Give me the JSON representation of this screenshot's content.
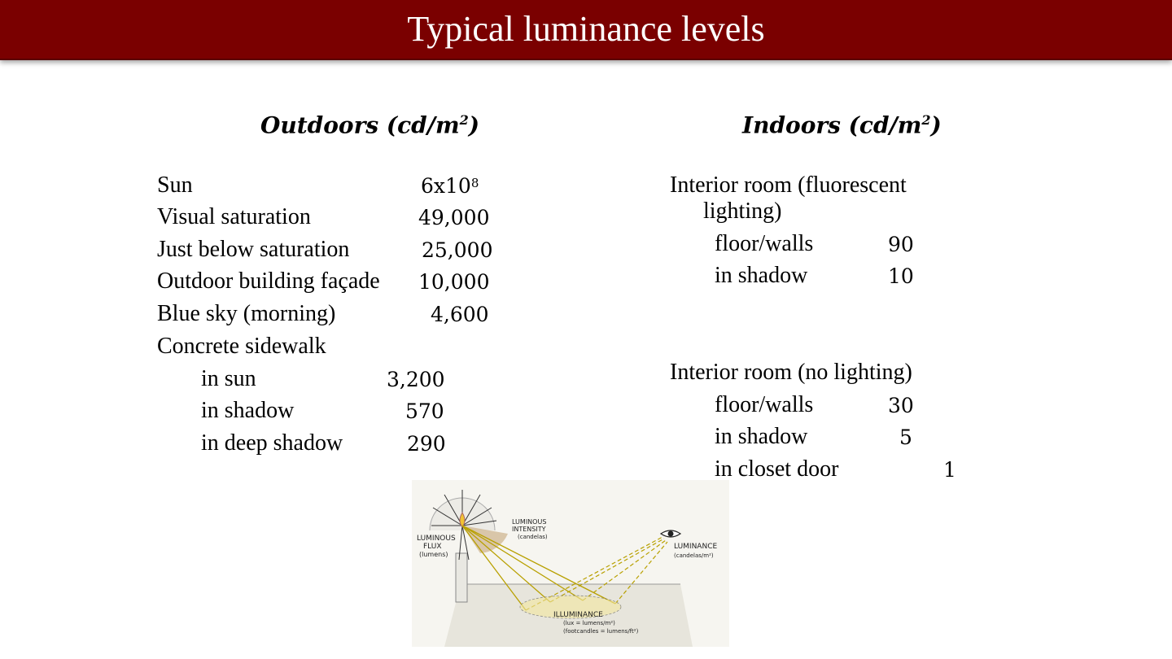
{
  "slide": {
    "title": "Typical luminance levels"
  },
  "outdoors": {
    "heading": "Outdoors (cd/m",
    "heading_sup": "2",
    "heading_close": ")",
    "sun_label": "Sun",
    "sun_base": "6x10",
    "sun_exp": "8",
    "rows": [
      {
        "label": "Visual saturation",
        "value": "49,000"
      },
      {
        "label": "Just below saturation",
        "value": "25,000"
      },
      {
        "label": "Outdoor building façade",
        "value": "10,000"
      },
      {
        "label": "Blue sky (morning)",
        "value": "4,600"
      }
    ],
    "group_label": "Concrete sidewalk",
    "sub_rows": [
      {
        "label": "in sun",
        "value": "3,200"
      },
      {
        "label": "in shadow",
        "value": "570"
      },
      {
        "label": "in deep shadow",
        "value": "290"
      }
    ]
  },
  "indoors": {
    "heading": "Indoors (cd/m",
    "heading_sup": "2",
    "heading_close": ")",
    "group1_line1": "Interior room (fluorescent",
    "group1_line2": "lighting)",
    "group1_rows": [
      {
        "label": "floor/walls",
        "value": "90"
      },
      {
        "label": "in shadow",
        "value": "10"
      }
    ],
    "group2_label": "Interior room (no lighting)",
    "group2_rows": [
      {
        "label": "floor/walls",
        "value": "30"
      },
      {
        "label": "in shadow",
        "value": "5"
      },
      {
        "label": "in closet door",
        "value": "1"
      }
    ]
  },
  "diagram": {
    "flux_l1": "LUMINOUS",
    "flux_l2": "FLUX",
    "flux_l3": "(lumens)",
    "intensity_l1": "LUMINOUS",
    "intensity_l2": "INTENSITY",
    "intensity_l3": "(candelas)",
    "luminance_l1": "LUMINANCE",
    "luminance_l2": "(candelas/m²)",
    "illuminance_l1": "ILLUMINANCE",
    "illuminance_l2": "(lux = lumens/m²)",
    "illuminance_l3": "(footcandles = lumens/ft²)"
  }
}
